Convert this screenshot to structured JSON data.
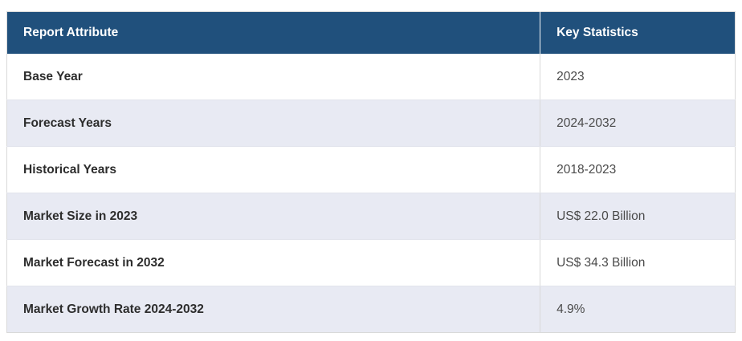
{
  "table": {
    "columns": [
      {
        "label": "Report Attribute"
      },
      {
        "label": "Key Statistics"
      }
    ],
    "rows": [
      {
        "attribute": "Base Year",
        "value": "2023"
      },
      {
        "attribute": "Forecast Years",
        "value": "2024-2032"
      },
      {
        "attribute": "Historical Years",
        "value": "2018-2023"
      },
      {
        "attribute": "Market Size in 2023",
        "value": "US$ 22.0 Billion"
      },
      {
        "attribute": "Market Forecast in 2032",
        "value": "US$ 34.3 Billion"
      },
      {
        "attribute": "Market Growth Rate 2024-2032",
        "value": "4.9%"
      }
    ],
    "colors": {
      "header_bg": "#20507c",
      "header_text": "#ffffff",
      "row_bg": "#ffffff",
      "row_alt_bg": "#e8eaf3",
      "border": "#d9d9d9",
      "label_text": "#2d2d2d",
      "value_text": "#4a4a4a"
    }
  }
}
